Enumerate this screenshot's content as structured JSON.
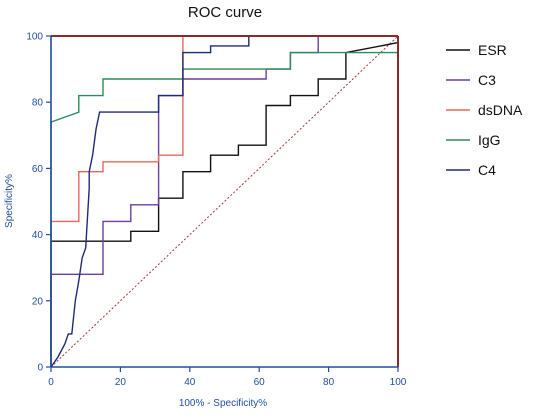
{
  "chart_data": {
    "type": "line",
    "title": "ROC curve",
    "xlabel": "100% - Specificity%",
    "ylabel": "Specificity%",
    "xlim": [
      0,
      100
    ],
    "ylim": [
      0,
      100
    ],
    "x_ticks": [
      0,
      20,
      40,
      60,
      80,
      100
    ],
    "y_ticks": [
      0,
      20,
      40,
      60,
      80,
      100
    ],
    "grid": false,
    "legend_position": "right",
    "colors": {
      "axis": "#1f4e9e",
      "frame": "#8b2a2a",
      "diagonal": "#a33a3a",
      "title": "#111111"
    },
    "series": [
      {
        "name": "ESR",
        "color": "#111111",
        "x": [
          0,
          0,
          15,
          15,
          23,
          23,
          31,
          31,
          38,
          38,
          46,
          46,
          54,
          54,
          62,
          62,
          69,
          69,
          77,
          77,
          85,
          85,
          100
        ],
        "y": [
          0,
          38,
          38,
          38,
          38,
          41,
          41,
          51,
          51,
          59,
          59,
          64,
          64,
          67,
          67,
          79,
          79,
          82,
          82,
          87,
          87,
          95,
          98
        ]
      },
      {
        "name": "C3",
        "color": "#6a3fa0",
        "x": [
          0,
          0,
          15,
          15,
          23,
          23,
          31,
          31,
          38,
          38,
          46,
          46,
          62,
          62,
          69,
          69,
          77,
          77,
          100
        ],
        "y": [
          0,
          28,
          28,
          44,
          44,
          49,
          49,
          82,
          82,
          87,
          87,
          87,
          87,
          90,
          90,
          95,
          95,
          100,
          100
        ]
      },
      {
        "name": "dsDNA",
        "color": "#e4685c",
        "x": [
          0,
          0,
          8,
          8,
          15,
          15,
          31,
          31,
          38,
          38,
          100
        ],
        "y": [
          0,
          44,
          44,
          59,
          59,
          62,
          62,
          64,
          64,
          100,
          100
        ]
      },
      {
        "name": "IgG",
        "color": "#2e8b5c",
        "x": [
          0,
          0,
          8,
          8,
          15,
          15,
          38,
          38,
          69,
          69,
          100
        ],
        "y": [
          0,
          74,
          77,
          82,
          82,
          87,
          87,
          90,
          90,
          95,
          95
        ]
      },
      {
        "name": "C4",
        "color": "#1e2a7a",
        "x": [
          0,
          2,
          4,
          5,
          6,
          7,
          8,
          9,
          10,
          11,
          11,
          12,
          13,
          14,
          15,
          31,
          31,
          38,
          38,
          46,
          46,
          57,
          57,
          100
        ],
        "y": [
          0,
          3,
          7,
          10,
          10,
          20,
          26,
          33,
          36,
          54,
          59,
          64,
          72,
          77,
          77,
          77,
          82,
          82,
          95,
          95,
          97,
          97,
          100,
          100
        ]
      }
    ]
  }
}
